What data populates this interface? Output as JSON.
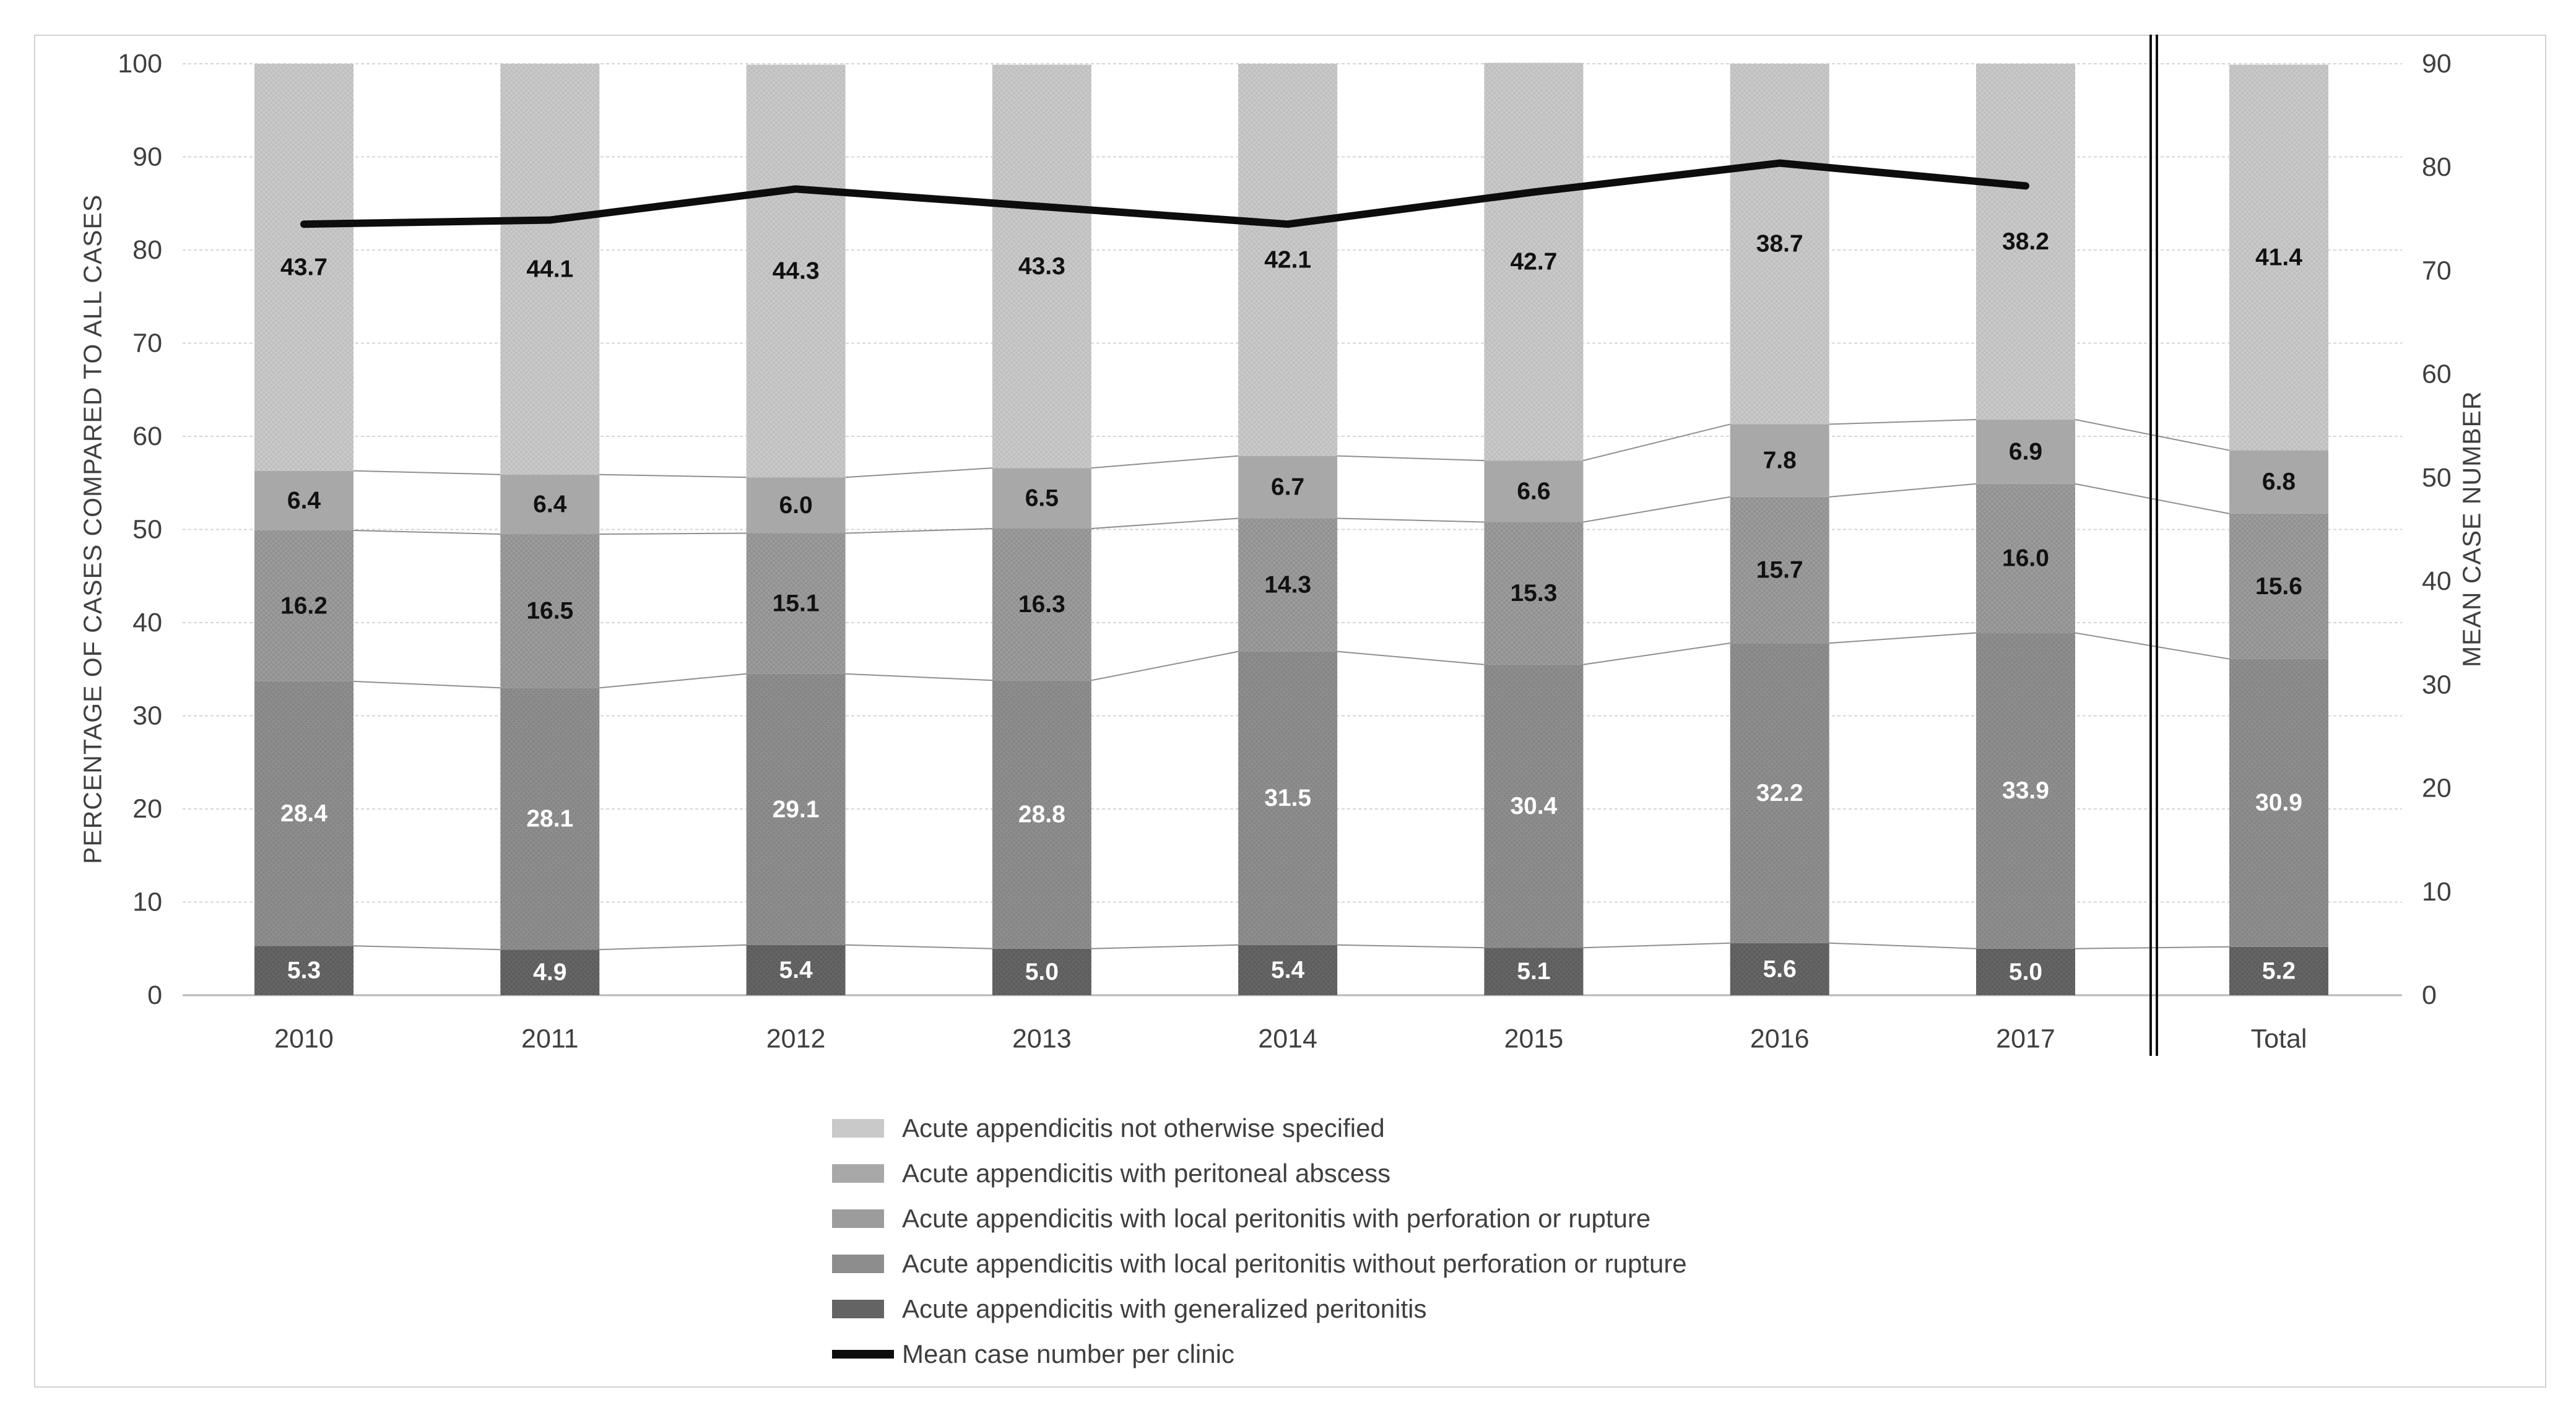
{
  "chart_data": {
    "type": "stacked-bar-with-line",
    "categories": [
      "2010",
      "2011",
      "2012",
      "2013",
      "2014",
      "2015",
      "2016",
      "2017",
      "Total"
    ],
    "series": [
      {
        "name": "Acute appendicitis with generalized peritonitis",
        "color": "#646464",
        "pattern": "dots-dark",
        "label_color": "#ffffff",
        "values": [
          5.3,
          4.9,
          5.4,
          5.0,
          5.4,
          5.1,
          5.6,
          5.0,
          5.2
        ]
      },
      {
        "name": "Acute appendicitis with local peritonitis without perforation or rupture",
        "color": "#8d8d8d",
        "pattern": "dots",
        "label_color": "#ffffff",
        "values": [
          28.4,
          28.1,
          29.1,
          28.8,
          31.5,
          30.4,
          32.2,
          33.9,
          30.9
        ]
      },
      {
        "name": "Acute appendicitis with local peritonitis with perforation or rupture",
        "color": "#9c9c9c",
        "pattern": "checker",
        "label_color": "#111111",
        "values": [
          16.2,
          16.5,
          15.1,
          16.3,
          14.3,
          15.3,
          15.7,
          16.0,
          15.6
        ]
      },
      {
        "name": "Acute appendicitis with peritoneal abscess",
        "color": "#a8a8a8",
        "pattern": "none",
        "label_color": "#111111",
        "values": [
          6.4,
          6.4,
          6.0,
          6.5,
          6.7,
          6.6,
          7.8,
          6.9,
          6.8
        ]
      },
      {
        "name": "Acute appendicitis not otherwise specified",
        "color": "#c9c9c9",
        "pattern": "checker-light",
        "label_color": "#111111",
        "values": [
          43.7,
          44.1,
          44.3,
          43.3,
          42.1,
          42.7,
          38.7,
          38.2,
          41.4
        ]
      }
    ],
    "line_series": {
      "name": "Mean case number per clinic",
      "color": "#0d0d0d",
      "categories": [
        "2010",
        "2011",
        "2012",
        "2013",
        "2014",
        "2015",
        "2016",
        "2017"
      ],
      "values": [
        74.5,
        74.9,
        77.9,
        76.2,
        74.5,
        77.6,
        80.4,
        78.2
      ]
    },
    "left_axis": {
      "title": "PERCENTAGE OF CASES COMPARED TO ALL CASES",
      "min": 0,
      "max": 100,
      "ticks": [
        "0",
        "10",
        "20",
        "30",
        "40",
        "50",
        "60",
        "70",
        "80",
        "90",
        "100"
      ]
    },
    "right_axis": {
      "title": "MEAN CASE NUMBER",
      "min": 0,
      "max": 90,
      "ticks": [
        "0",
        "10",
        "20",
        "30",
        "40",
        "50",
        "60",
        "70",
        "80",
        "90"
      ]
    },
    "separator": {
      "after_category": "2017",
      "style": "double-vertical-line"
    },
    "grid": {
      "horizontal": true,
      "style": "dashed"
    },
    "legend": {
      "position": "bottom-left",
      "items": [
        {
          "label": "Acute appendicitis not otherwise specified",
          "marker": "swatch",
          "series": 4
        },
        {
          "label": "Acute appendicitis with peritoneal abscess",
          "marker": "swatch",
          "series": 3
        },
        {
          "label": "Acute appendicitis with local peritonitis with perforation or rupture",
          "marker": "swatch",
          "series": 2
        },
        {
          "label": "Acute appendicitis with local peritonitis without perforation or rupture",
          "marker": "swatch",
          "series": 1
        },
        {
          "label": "Acute appendicitis with generalized peritonitis",
          "marker": "swatch",
          "series": 0
        },
        {
          "label": "Mean case number per clinic",
          "marker": "line",
          "color": "#0d0d0d"
        }
      ]
    }
  }
}
